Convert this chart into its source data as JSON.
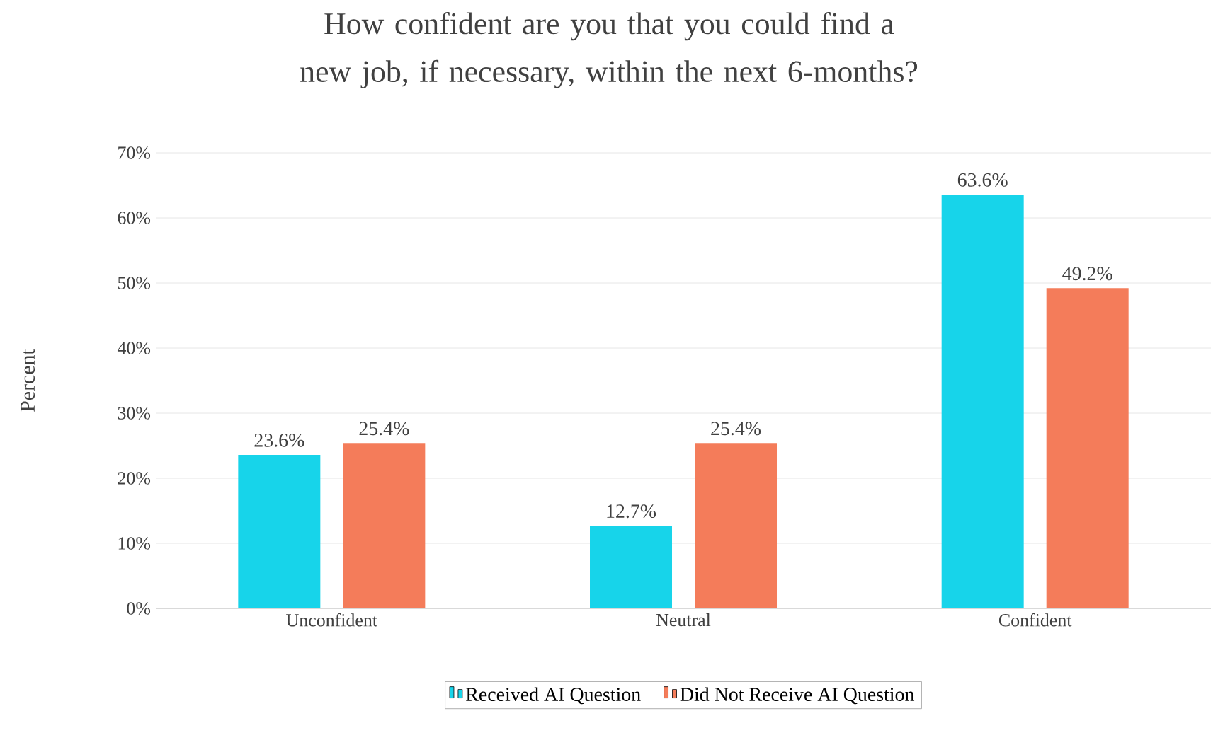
{
  "chart_data": {
    "type": "bar",
    "title": "How confident are you that you could find a new job, if necessary, within the next 6-months?",
    "ylabel": "Percent",
    "categories": [
      "Unconfident",
      "Neutral",
      "Confident"
    ],
    "series": [
      {
        "name": "Received AI Question",
        "color": "#17d4ea",
        "values": [
          23.6,
          12.7,
          63.6
        ],
        "value_labels": [
          "23.6%",
          "12.7%",
          "63.6%"
        ]
      },
      {
        "name": "Did Not Receive AI Question",
        "color": "#f47c5a",
        "values": [
          25.4,
          25.4,
          49.2
        ],
        "value_labels": [
          "25.4%",
          "25.4%",
          "49.2%"
        ]
      }
    ],
    "ylim": [
      0,
      70
    ],
    "yticks": [
      {
        "value": 0,
        "label": "0%"
      },
      {
        "value": 10,
        "label": "10%"
      },
      {
        "value": 20,
        "label": "20%"
      },
      {
        "value": 30,
        "label": "30%"
      },
      {
        "value": 40,
        "label": "40%"
      },
      {
        "value": 50,
        "label": "50%"
      },
      {
        "value": 60,
        "label": "60%"
      },
      {
        "value": 70,
        "label": "70%"
      }
    ],
    "grid": "y",
    "legend": "bottom"
  }
}
